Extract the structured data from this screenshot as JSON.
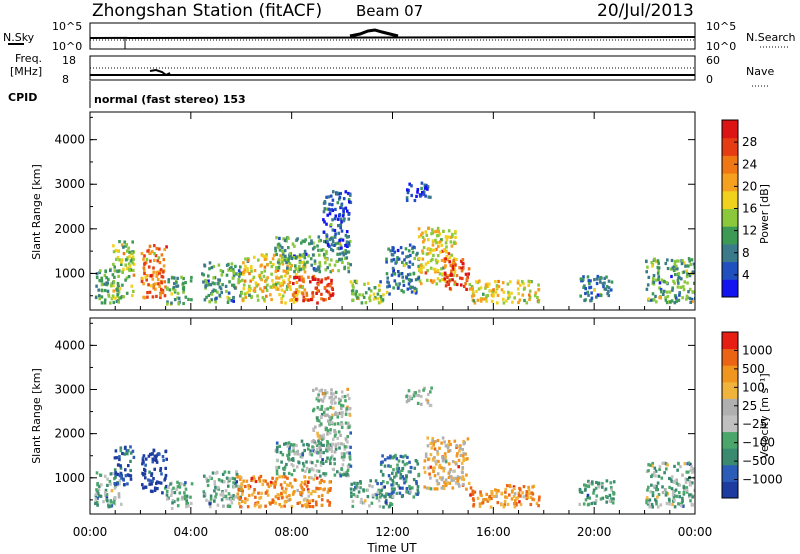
{
  "header": {
    "station": "Zhongshan Station (fitACF)",
    "beam": "Beam 07",
    "date": "20/Jul/2013"
  },
  "params": {
    "nsky_label": "N.Sky",
    "nsearch_label": "N.Search",
    "freq_label_1": "Freq.",
    "freq_label_2": "[MHz]",
    "nave_label": "Nave",
    "cpid_label": "CPID",
    "cpid_value": "normal (fast stereo) 153",
    "noise_ticks_left": [
      "10^5",
      "10^0"
    ],
    "noise_ticks_right": [
      "10^5",
      "10^0"
    ],
    "freq_ticks": [
      "18",
      "8"
    ],
    "nave_ticks": [
      "60",
      "0"
    ]
  },
  "chart_data": [
    {
      "type": "heatmap",
      "name": "power",
      "ylabel": "Slant Range [km]",
      "xlabel": "Time UT",
      "x_ticks": [
        "00:00",
        "04:00",
        "08:00",
        "12:00",
        "16:00",
        "20:00",
        "00:00"
      ],
      "y_ticks": [
        1000,
        2000,
        3000,
        4000
      ],
      "xlim": [
        0,
        24
      ],
      "ylim": [
        180,
        4620
      ],
      "colorbar": {
        "label": "Power [dB]",
        "ticks": [
          "4",
          "8",
          "12",
          "16",
          "20",
          "24",
          "28"
        ],
        "colors": [
          "#1414f0",
          "#2050c0",
          "#3a7a8a",
          "#3d9a55",
          "#8cc83c",
          "#f0d21e",
          "#f5a01e",
          "#f07814",
          "#e63c14",
          "#dc1414"
        ]
      },
      "clusters": [
        {
          "t0": 0.15,
          "t1": 1.1,
          "r0": 300,
          "r1": 1100,
          "level": 3
        },
        {
          "t0": 0.8,
          "t1": 1.7,
          "r0": 400,
          "r1": 1700,
          "level": 4
        },
        {
          "t0": 2.0,
          "t1": 3.0,
          "r0": 400,
          "r1": 1600,
          "level": 7
        },
        {
          "t0": 3.0,
          "t1": 4.0,
          "r0": 250,
          "r1": 900,
          "level": 3
        },
        {
          "t0": 4.4,
          "t1": 6.0,
          "r0": 300,
          "r1": 1200,
          "level": 3
        },
        {
          "t0": 6.0,
          "t1": 8.5,
          "r0": 300,
          "r1": 1400,
          "level": 5
        },
        {
          "t0": 8.0,
          "t1": 9.6,
          "r0": 300,
          "r1": 900,
          "level": 8
        },
        {
          "t0": 7.3,
          "t1": 10.3,
          "r0": 1000,
          "r1": 1800,
          "level": 3
        },
        {
          "t0": 9.2,
          "t1": 10.3,
          "r0": 1500,
          "r1": 2800,
          "level": 1
        },
        {
          "t0": 10.3,
          "t1": 11.7,
          "r0": 300,
          "r1": 800,
          "level": 4
        },
        {
          "t0": 11.7,
          "t1": 13.0,
          "r0": 500,
          "r1": 1600,
          "level": 2
        },
        {
          "t0": 12.5,
          "t1": 13.5,
          "r0": 2600,
          "r1": 3000,
          "level": 1
        },
        {
          "t0": 13.0,
          "t1": 14.5,
          "r0": 700,
          "r1": 2000,
          "level": 5
        },
        {
          "t0": 14.0,
          "t1": 15.0,
          "r0": 600,
          "r1": 1300,
          "level": 8
        },
        {
          "t0": 15.0,
          "t1": 17.8,
          "r0": 300,
          "r1": 800,
          "level": 5
        },
        {
          "t0": 19.3,
          "t1": 20.7,
          "r0": 350,
          "r1": 900,
          "level": 2
        },
        {
          "t0": 22.0,
          "t1": 24.0,
          "r0": 300,
          "r1": 1300,
          "level": 3
        }
      ]
    },
    {
      "type": "heatmap",
      "name": "velocity",
      "ylabel": "Slant Range [km]",
      "xlabel": "Time UT",
      "x_ticks": [
        "00:00",
        "04:00",
        "08:00",
        "12:00",
        "16:00",
        "20:00",
        "00:00"
      ],
      "y_ticks": [
        1000,
        2000,
        3000,
        4000
      ],
      "xlim": [
        0,
        24
      ],
      "ylim": [
        180,
        4620
      ],
      "colorbar": {
        "label": "Velocity [m s⁻¹]",
        "ticks": [
          "1000",
          "500",
          "100",
          "25",
          "−25",
          "−100",
          "−500",
          "−1000"
        ],
        "colors": [
          "#1e3ca0",
          "#2b5cb8",
          "#3a8a70",
          "#4aa66a",
          "#c0c0c0",
          "#b0b0b0",
          "#f0b43c",
          "#f0961e",
          "#eb6414",
          "#e61e14"
        ]
      },
      "clusters": [
        {
          "t0": 0.15,
          "t1": 1.2,
          "r0": 300,
          "r1": 1100,
          "level": 3
        },
        {
          "t0": 0.9,
          "t1": 1.7,
          "r0": 800,
          "r1": 1700,
          "level": 1
        },
        {
          "t0": 2.0,
          "t1": 3.0,
          "r0": 600,
          "r1": 1600,
          "level": 0
        },
        {
          "t0": 3.0,
          "t1": 4.0,
          "r0": 250,
          "r1": 900,
          "level": 3
        },
        {
          "t0": 4.4,
          "t1": 6.0,
          "r0": 300,
          "r1": 1100,
          "level": 3
        },
        {
          "t0": 5.8,
          "t1": 9.5,
          "r0": 300,
          "r1": 1000,
          "level": 7
        },
        {
          "t0": 7.3,
          "t1": 10.3,
          "r0": 1000,
          "r1": 1800,
          "level": 3
        },
        {
          "t0": 8.8,
          "t1": 10.3,
          "r0": 1500,
          "r1": 3000,
          "level": 4
        },
        {
          "t0": 10.3,
          "t1": 12.0,
          "r0": 300,
          "r1": 900,
          "level": 3
        },
        {
          "t0": 11.5,
          "t1": 13.0,
          "r0": 500,
          "r1": 1500,
          "level": 2
        },
        {
          "t0": 12.5,
          "t1": 13.5,
          "r0": 2600,
          "r1": 3000,
          "level": 4
        },
        {
          "t0": 13.2,
          "t1": 15.0,
          "r0": 700,
          "r1": 1900,
          "level": 6
        },
        {
          "t0": 15.0,
          "t1": 17.8,
          "r0": 300,
          "r1": 800,
          "level": 7
        },
        {
          "t0": 19.3,
          "t1": 20.8,
          "r0": 350,
          "r1": 900,
          "level": 3
        },
        {
          "t0": 22.0,
          "t1": 24.0,
          "r0": 300,
          "r1": 1300,
          "level": 3
        }
      ]
    }
  ]
}
